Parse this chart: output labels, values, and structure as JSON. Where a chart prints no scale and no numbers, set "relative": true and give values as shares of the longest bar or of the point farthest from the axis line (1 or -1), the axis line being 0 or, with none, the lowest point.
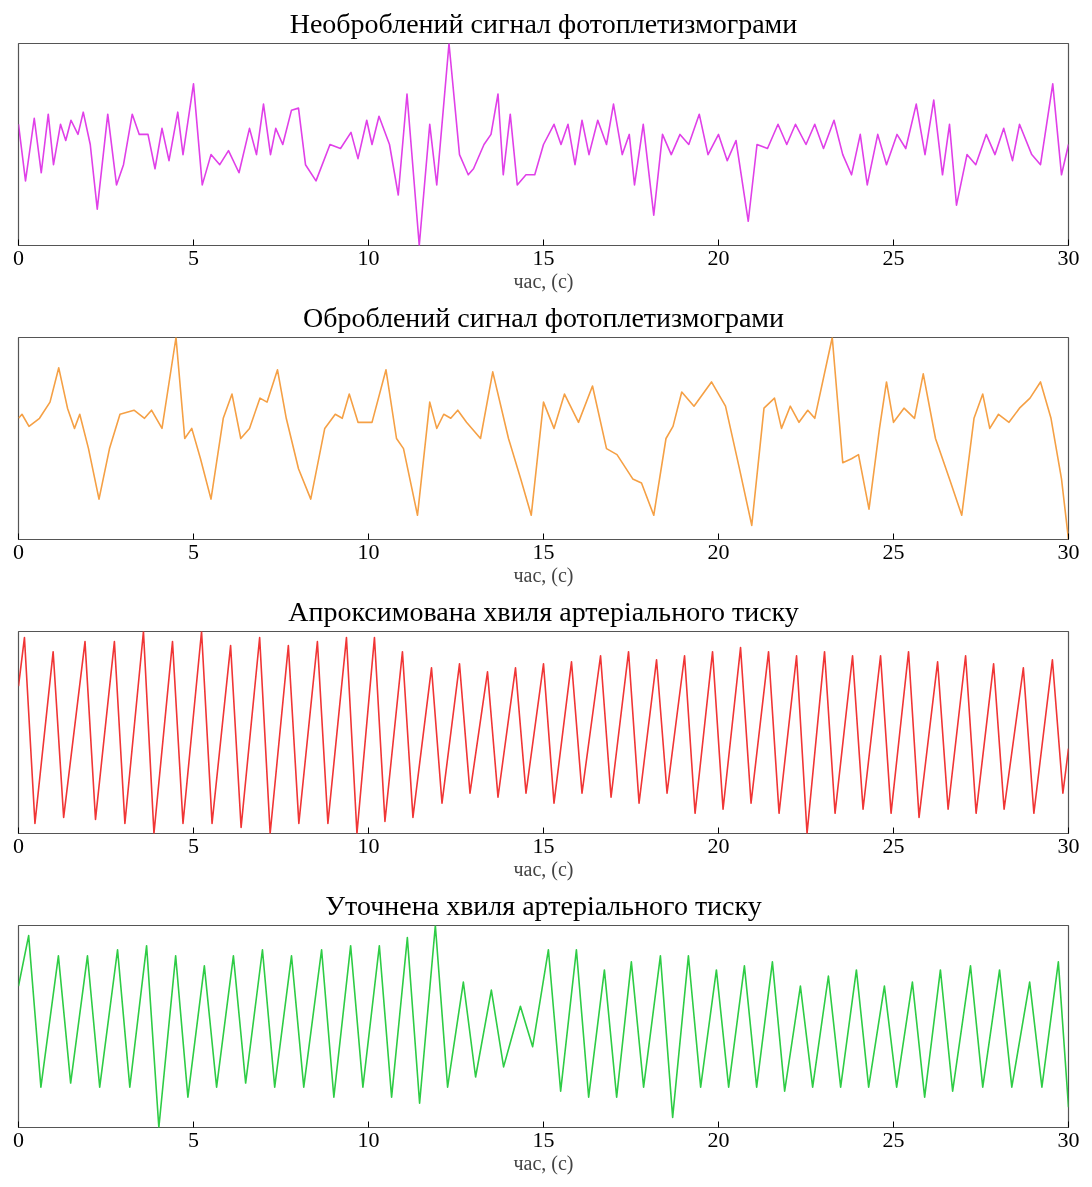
{
  "chart_data": [
    {
      "type": "line",
      "title": "Необроблений сигнал фотоплетизмограми",
      "xlabel": "час, (с)",
      "relative": true,
      "grid": false,
      "tick_labels": "x",
      "xlim": [
        0,
        30
      ],
      "xticks": [
        0,
        5,
        10,
        15,
        20,
        25,
        30
      ],
      "series": [
        {
          "color": "#e040e8",
          "x": [
            0,
            0.2,
            0.45,
            0.65,
            0.85,
            1.0,
            1.2,
            1.35,
            1.5,
            1.7,
            1.85,
            2.05,
            2.25,
            2.55,
            2.8,
            3.0,
            3.25,
            3.45,
            3.7,
            3.9,
            4.1,
            4.3,
            4.55,
            4.7,
            5.0,
            5.25,
            5.5,
            5.75,
            6.0,
            6.3,
            6.6,
            6.8,
            7.0,
            7.2,
            7.35,
            7.55,
            7.8,
            8.0,
            8.2,
            8.5,
            8.9,
            9.2,
            9.5,
            9.7,
            9.95,
            10.1,
            10.3,
            10.6,
            10.85,
            11.1,
            11.45,
            11.75,
            11.95,
            12.3,
            12.6,
            12.85,
            13.0,
            13.3,
            13.5,
            13.7,
            13.85,
            14.05,
            14.25,
            14.5,
            14.75,
            15.0,
            15.3,
            15.5,
            15.7,
            15.9,
            16.1,
            16.3,
            16.55,
            16.8,
            17.0,
            17.25,
            17.45,
            17.6,
            17.85,
            18.15,
            18.4,
            18.65,
            18.9,
            19.15,
            19.45,
            19.7,
            20.0,
            20.25,
            20.5,
            20.85,
            21.1,
            21.4,
            21.7,
            21.95,
            22.2,
            22.5,
            22.75,
            23.0,
            23.3,
            23.55,
            23.8,
            24.05,
            24.25,
            24.55,
            24.8,
            25.1,
            25.35,
            25.65,
            25.9,
            26.15,
            26.4,
            26.6,
            26.8,
            27.1,
            27.35,
            27.65,
            27.9,
            28.15,
            28.4,
            28.6,
            28.95,
            29.2,
            29.55,
            29.8,
            30.0
          ],
          "values": [
            0.6,
            0.32,
            0.63,
            0.36,
            0.65,
            0.4,
            0.6,
            0.52,
            0.62,
            0.55,
            0.66,
            0.5,
            0.18,
            0.65,
            0.3,
            0.4,
            0.65,
            0.55,
            0.55,
            0.38,
            0.58,
            0.42,
            0.66,
            0.45,
            0.8,
            0.3,
            0.45,
            0.4,
            0.47,
            0.36,
            0.58,
            0.45,
            0.7,
            0.45,
            0.58,
            0.5,
            0.67,
            0.68,
            0.4,
            0.32,
            0.5,
            0.48,
            0.56,
            0.43,
            0.62,
            0.5,
            0.64,
            0.5,
            0.25,
            0.75,
            0.0,
            0.6,
            0.3,
            1.0,
            0.45,
            0.35,
            0.38,
            0.5,
            0.55,
            0.75,
            0.35,
            0.65,
            0.3,
            0.35,
            0.35,
            0.5,
            0.6,
            0.5,
            0.6,
            0.4,
            0.62,
            0.45,
            0.62,
            0.5,
            0.7,
            0.45,
            0.55,
            0.3,
            0.6,
            0.15,
            0.55,
            0.45,
            0.55,
            0.5,
            0.65,
            0.45,
            0.55,
            0.42,
            0.52,
            0.12,
            0.5,
            0.48,
            0.6,
            0.5,
            0.6,
            0.5,
            0.6,
            0.48,
            0.62,
            0.45,
            0.35,
            0.55,
            0.3,
            0.55,
            0.4,
            0.55,
            0.48,
            0.7,
            0.45,
            0.72,
            0.35,
            0.6,
            0.2,
            0.45,
            0.4,
            0.55,
            0.45,
            0.58,
            0.42,
            0.6,
            0.45,
            0.4,
            0.8,
            0.35,
            0.5
          ]
        }
      ]
    },
    {
      "type": "line",
      "title": "Оброблений сигнал фотоплетизмограми",
      "xlabel": "час, (с)",
      "relative": true,
      "grid": false,
      "tick_labels": "x",
      "xlim": [
        0,
        30
      ],
      "xticks": [
        0,
        5,
        10,
        15,
        20,
        25,
        30
      ],
      "series": [
        {
          "color": "#f5a045",
          "x": [
            0,
            0.1,
            0.3,
            0.6,
            0.9,
            1.15,
            1.4,
            1.6,
            1.75,
            2.0,
            2.3,
            2.6,
            2.9,
            3.3,
            3.6,
            3.8,
            4.1,
            4.5,
            4.75,
            4.95,
            5.2,
            5.5,
            5.85,
            6.1,
            6.35,
            6.6,
            6.9,
            7.1,
            7.4,
            7.65,
            8.0,
            8.35,
            8.75,
            9.05,
            9.25,
            9.45,
            9.7,
            10.1,
            10.5,
            10.8,
            11.0,
            11.4,
            11.75,
            11.95,
            12.15,
            12.35,
            12.55,
            12.8,
            13.2,
            13.55,
            14.0,
            14.35,
            14.65,
            15.0,
            15.3,
            15.6,
            16.0,
            16.4,
            16.8,
            17.1,
            17.55,
            17.8,
            18.15,
            18.5,
            18.7,
            18.95,
            19.3,
            19.8,
            20.2,
            20.6,
            20.95,
            21.3,
            21.6,
            21.8,
            22.05,
            22.3,
            22.55,
            22.75,
            23.25,
            23.55,
            23.8,
            24.0,
            24.3,
            24.6,
            24.8,
            25.0,
            25.3,
            25.6,
            25.85,
            26.2,
            26.6,
            26.95,
            27.3,
            27.55,
            27.75,
            28.0,
            28.3,
            28.6,
            28.9,
            29.2,
            29.5,
            29.8,
            30.0
          ],
          "values": [
            0.6,
            0.62,
            0.56,
            0.6,
            0.68,
            0.85,
            0.65,
            0.55,
            0.62,
            0.45,
            0.2,
            0.45,
            0.62,
            0.64,
            0.6,
            0.64,
            0.55,
            1.0,
            0.5,
            0.55,
            0.4,
            0.2,
            0.6,
            0.72,
            0.5,
            0.55,
            0.7,
            0.68,
            0.84,
            0.6,
            0.35,
            0.2,
            0.55,
            0.62,
            0.6,
            0.72,
            0.58,
            0.58,
            0.84,
            0.5,
            0.45,
            0.12,
            0.68,
            0.55,
            0.62,
            0.6,
            0.64,
            0.58,
            0.5,
            0.83,
            0.5,
            0.3,
            0.12,
            0.68,
            0.55,
            0.72,
            0.58,
            0.76,
            0.45,
            0.42,
            0.3,
            0.28,
            0.12,
            0.5,
            0.56,
            0.73,
            0.66,
            0.78,
            0.66,
            0.35,
            0.07,
            0.65,
            0.7,
            0.55,
            0.66,
            0.58,
            0.64,
            0.6,
            1.0,
            0.38,
            0.4,
            0.42,
            0.15,
            0.55,
            0.78,
            0.58,
            0.65,
            0.6,
            0.82,
            0.5,
            0.3,
            0.12,
            0.6,
            0.72,
            0.55,
            0.62,
            0.58,
            0.65,
            0.7,
            0.78,
            0.6,
            0.3,
            0.0
          ]
        }
      ]
    },
    {
      "type": "line",
      "title": "Апроксимована хвиля артеріального тиску",
      "xlabel": "час, (с)",
      "relative": true,
      "grid": false,
      "tick_labels": "x",
      "xlim": [
        0,
        30
      ],
      "xticks": [
        0,
        5,
        10,
        15,
        20,
        25,
        30
      ],
      "series": [
        {
          "color": "#f03535",
          "x": [
            0,
            0.17,
            0.47,
            0.99,
            1.29,
            1.9,
            2.2,
            2.74,
            3.04,
            3.57,
            3.87,
            4.4,
            4.7,
            5.23,
            5.53,
            6.06,
            6.36,
            6.89,
            7.19,
            7.71,
            8.01,
            8.54,
            8.84,
            9.37,
            9.67,
            10.17,
            10.47,
            10.97,
            11.27,
            11.8,
            12.1,
            12.6,
            12.9,
            13.4,
            13.7,
            14.2,
            14.5,
            15.0,
            15.3,
            15.8,
            16.1,
            16.63,
            16.93,
            17.43,
            17.73,
            18.23,
            18.53,
            19.03,
            19.33,
            19.83,
            20.13,
            20.63,
            20.93,
            21.43,
            21.73,
            22.23,
            22.53,
            23.03,
            23.33,
            23.83,
            24.13,
            24.63,
            24.93,
            25.43,
            25.73,
            26.26,
            26.56,
            27.06,
            27.36,
            27.86,
            28.16,
            28.71,
            29.01,
            29.54,
            29.84,
            30
          ],
          "values": [
            0.73,
            0.97,
            0.05,
            0.9,
            0.08,
            0.95,
            0.07,
            0.95,
            0.05,
            1.0,
            0.0,
            0.95,
            0.05,
            1.0,
            0.05,
            0.93,
            0.03,
            0.97,
            0.0,
            0.93,
            0.05,
            0.95,
            0.05,
            0.97,
            0.0,
            0.97,
            0.06,
            0.9,
            0.08,
            0.82,
            0.15,
            0.84,
            0.2,
            0.8,
            0.18,
            0.82,
            0.2,
            0.84,
            0.15,
            0.85,
            0.2,
            0.88,
            0.18,
            0.9,
            0.15,
            0.86,
            0.2,
            0.88,
            0.1,
            0.9,
            0.12,
            0.92,
            0.15,
            0.9,
            0.1,
            0.88,
            0.0,
            0.9,
            0.1,
            0.88,
            0.12,
            0.88,
            0.1,
            0.9,
            0.08,
            0.85,
            0.12,
            0.88,
            0.1,
            0.84,
            0.12,
            0.82,
            0.1,
            0.86,
            0.2,
            0.42
          ]
        }
      ]
    },
    {
      "type": "line",
      "title": "Уточнена хвиля артеріального тиску",
      "xlabel": "час, (с)",
      "relative": true,
      "grid": false,
      "tick_labels": "x",
      "xlim": [
        0,
        30
      ],
      "xticks": [
        0,
        5,
        10,
        15,
        20,
        25,
        30
      ],
      "series": [
        {
          "color": "#2ecc45",
          "x": [
            0,
            0.29,
            0.64,
            1.14,
            1.49,
            1.97,
            2.32,
            2.83,
            3.18,
            3.66,
            4.01,
            4.49,
            4.84,
            5.31,
            5.66,
            6.14,
            6.49,
            6.97,
            7.32,
            7.8,
            8.15,
            8.66,
            9.01,
            9.49,
            9.84,
            10.31,
            10.66,
            11.11,
            11.46,
            11.91,
            12.26,
            12.71,
            13.06,
            13.51,
            13.86,
            14.34,
            14.69,
            15.14,
            15.49,
            15.94,
            16.29,
            16.74,
            17.09,
            17.51,
            17.86,
            18.34,
            18.69,
            19.14,
            19.49,
            19.94,
            20.29,
            20.74,
            21.09,
            21.54,
            21.89,
            22.34,
            22.69,
            23.14,
            23.49,
            23.94,
            24.29,
            24.74,
            25.09,
            25.54,
            25.89,
            26.34,
            26.69,
            27.2,
            27.55,
            28.03,
            28.38,
            28.89,
            29.24,
            29.71,
            30
          ],
          "values": [
            0.7,
            0.95,
            0.2,
            0.85,
            0.22,
            0.85,
            0.2,
            0.88,
            0.2,
            0.9,
            0.0,
            0.85,
            0.15,
            0.8,
            0.2,
            0.85,
            0.22,
            0.88,
            0.2,
            0.85,
            0.2,
            0.88,
            0.15,
            0.9,
            0.2,
            0.9,
            0.15,
            0.94,
            0.12,
            1.0,
            0.2,
            0.72,
            0.25,
            0.68,
            0.3,
            0.6,
            0.4,
            0.88,
            0.18,
            0.88,
            0.15,
            0.78,
            0.15,
            0.82,
            0.2,
            0.85,
            0.05,
            0.85,
            0.2,
            0.78,
            0.2,
            0.8,
            0.2,
            0.82,
            0.18,
            0.7,
            0.2,
            0.75,
            0.2,
            0.78,
            0.2,
            0.7,
            0.2,
            0.72,
            0.15,
            0.78,
            0.18,
            0.8,
            0.2,
            0.78,
            0.2,
            0.72,
            0.2,
            0.82,
            0.1
          ]
        }
      ]
    }
  ]
}
